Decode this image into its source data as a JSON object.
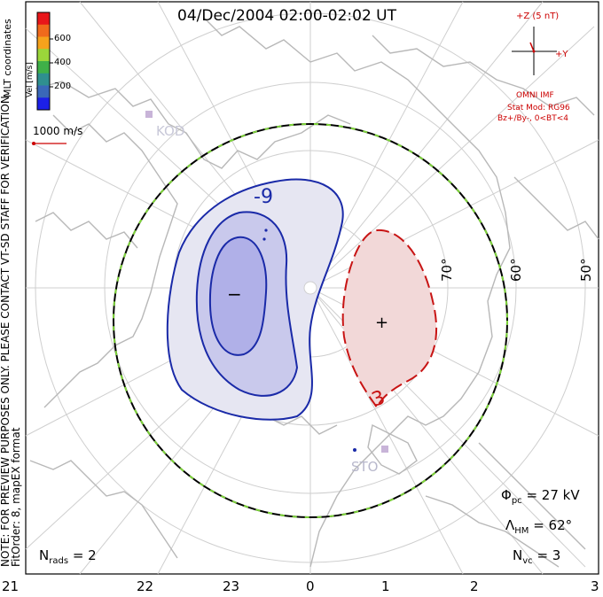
{
  "title": "04/Dec/2004 02:00-02:02 UT",
  "side_note_line1": "NOTE: FOR PREVIEW PURPOSES ONLY. PLEASE CONTACT VT-SD STAFF FOR VERIFICATION.",
  "side_note_line2": "FitOrder: 8, mapEX format",
  "coordinates_label": "MLT coordinates",
  "color_scale": {
    "title": "Vel [m/s]",
    "ticks": [
      "600",
      "400",
      "200"
    ],
    "colors": [
      "#e8161a",
      "#f06a1c",
      "#f6a21c",
      "#9bd63a",
      "#3fb048",
      "#2f8f8f",
      "#3a68b8",
      "#1c20e8"
    ]
  },
  "reference_vector": {
    "label": "1000 m/s",
    "color": "#cc0000"
  },
  "imf": {
    "z_label": "+Z (5 nT)",
    "y_label": "+Y",
    "source_label": "OMNI IMF",
    "model_label": "Stat Mod: RG96",
    "condition_label": "Bz+/By-, 0<BT<4",
    "color": "#cc0000"
  },
  "latitude_labels": [
    "70°",
    "60°",
    "50°"
  ],
  "mlt_ticks": [
    "21",
    "22",
    "23",
    "0",
    "1",
    "2",
    "3"
  ],
  "contours": {
    "negative_label": "-9",
    "positive_label": "3",
    "negative_sign": "−",
    "positive_sign": "+",
    "negative_color": "#1a2aa8",
    "positive_color": "#c81414"
  },
  "stations": [
    "KOD",
    "STO"
  ],
  "stats": {
    "phi_pc_symbol": "Φ",
    "phi_pc_sub": "pc",
    "phi_pc_value": "= 27 kV",
    "lambda_symbol": "Λ",
    "lambda_sub": "HM",
    "lambda_value": "= 62°",
    "nvc_symbol": "N",
    "nvc_sub": "vc",
    "nvc_value": "= 3",
    "nrads_symbol": "N",
    "nrads_sub": "rads",
    "nrads_value": "= 2"
  }
}
